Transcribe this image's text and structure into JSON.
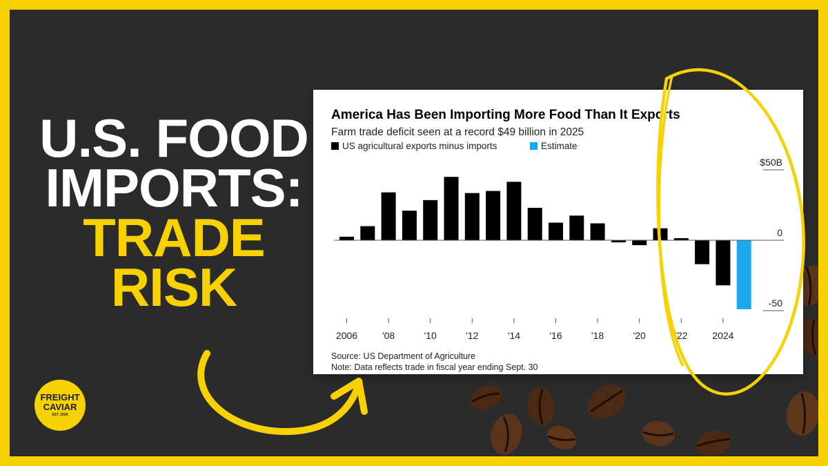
{
  "headline": {
    "line1": "U.S. FOOD",
    "line2": "IMPORTS:",
    "line3": "TRADE",
    "line4": "RISK"
  },
  "logo": {
    "line1": "FREIGHT",
    "line2": "CAVIAR",
    "tagline": "EST. 2020"
  },
  "colors": {
    "frame": "#f7d100",
    "background": "#2b2b2b",
    "bar_actual": "#000000",
    "bar_estimate": "#1aa7ec",
    "annotation": "#f7d100"
  },
  "chart_data": {
    "type": "bar",
    "title": "America Has Been Importing More Food Than It Exports",
    "subtitle": "Farm trade deficit seen at a record $49 billion in 2025",
    "legend": [
      {
        "label": "US agricultural exports minus imports",
        "color": "#000000"
      },
      {
        "label": "Estimate",
        "color": "#1aa7ec"
      }
    ],
    "legend_position": "top-left",
    "x": [
      2006,
      2007,
      2008,
      2009,
      2010,
      2011,
      2012,
      2013,
      2014,
      2015,
      2016,
      2017,
      2018,
      2019,
      2020,
      2021,
      2022,
      2023,
      2024,
      2025
    ],
    "values": [
      2.5,
      10,
      34,
      21,
      28.5,
      45,
      33.5,
      35,
      41.5,
      23,
      12.5,
      17.5,
      12,
      -1.5,
      -3.5,
      8.5,
      1.5,
      -17,
      -32,
      -49
    ],
    "estimate": [
      false,
      false,
      false,
      false,
      false,
      false,
      false,
      false,
      false,
      false,
      false,
      false,
      false,
      false,
      false,
      false,
      false,
      false,
      false,
      true
    ],
    "x_tick_labels": [
      "2006",
      "'08",
      "'10",
      "'12",
      "'14",
      "'16",
      "'18",
      "'20",
      "'22",
      "2024"
    ],
    "y_ticks": [
      50,
      0,
      -50
    ],
    "y_tick_labels": [
      "$50B",
      "0",
      "-50"
    ],
    "ylim": [
      -55,
      55
    ],
    "grid": false,
    "source": "Source: US Department of Agriculture",
    "note": "Note: Data reflects trade in fiscal year ending Sept. 30"
  }
}
